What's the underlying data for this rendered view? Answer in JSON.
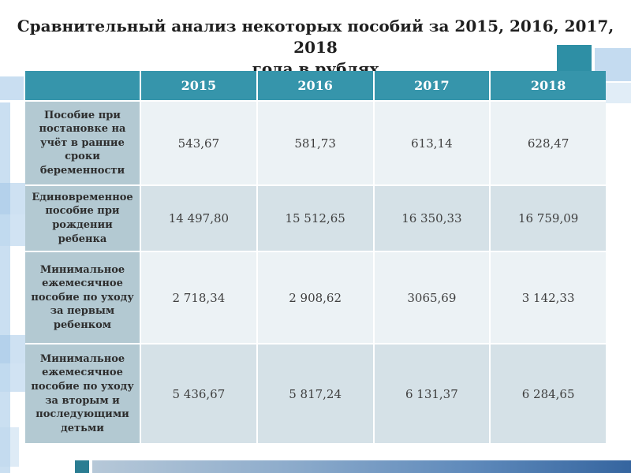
{
  "title": {
    "line1": "Сравнительный анализ некоторых пособий за 2015, 2016, 2017, 2018",
    "line2": "года в рублях"
  },
  "table": {
    "columns": [
      "",
      "2015",
      "2016",
      "2017",
      "2018"
    ],
    "rows": [
      {
        "label": "Пособие при постановке на учёт в ранние сроки беременности",
        "values": [
          "543,67",
          "581,73",
          "613,14",
          "628,47"
        ]
      },
      {
        "label": "Единовременное пособие при рождении ребенка",
        "values": [
          "14 497,80",
          "15 512,65",
          "16 350,33",
          "16 759,09"
        ]
      },
      {
        "label": "Минимальное ежемесячное пособие по уходу за первым ребенком",
        "values": [
          "2 718,34",
          "2 908,62",
          "3065,69",
          "3 142,33"
        ]
      },
      {
        "label": "Минимальное ежемесячное пособие по уходу за вторым и последующими детьми",
        "values": [
          "5 436,67",
          "5 817,24",
          "6 131,37",
          "6 284,65"
        ]
      }
    ]
  },
  "colors": {
    "header_teal": "#3695ab",
    "label_column": "#b3c9d2",
    "row_light": "#ecf2f5",
    "row_dark": "#d5e1e7",
    "accent_teal_square": "#2e8fa5",
    "accent_light_blue": "#9dc3e6",
    "bottom_bar_start": "#b6c8d8",
    "bottom_bar_end": "#35659f"
  }
}
